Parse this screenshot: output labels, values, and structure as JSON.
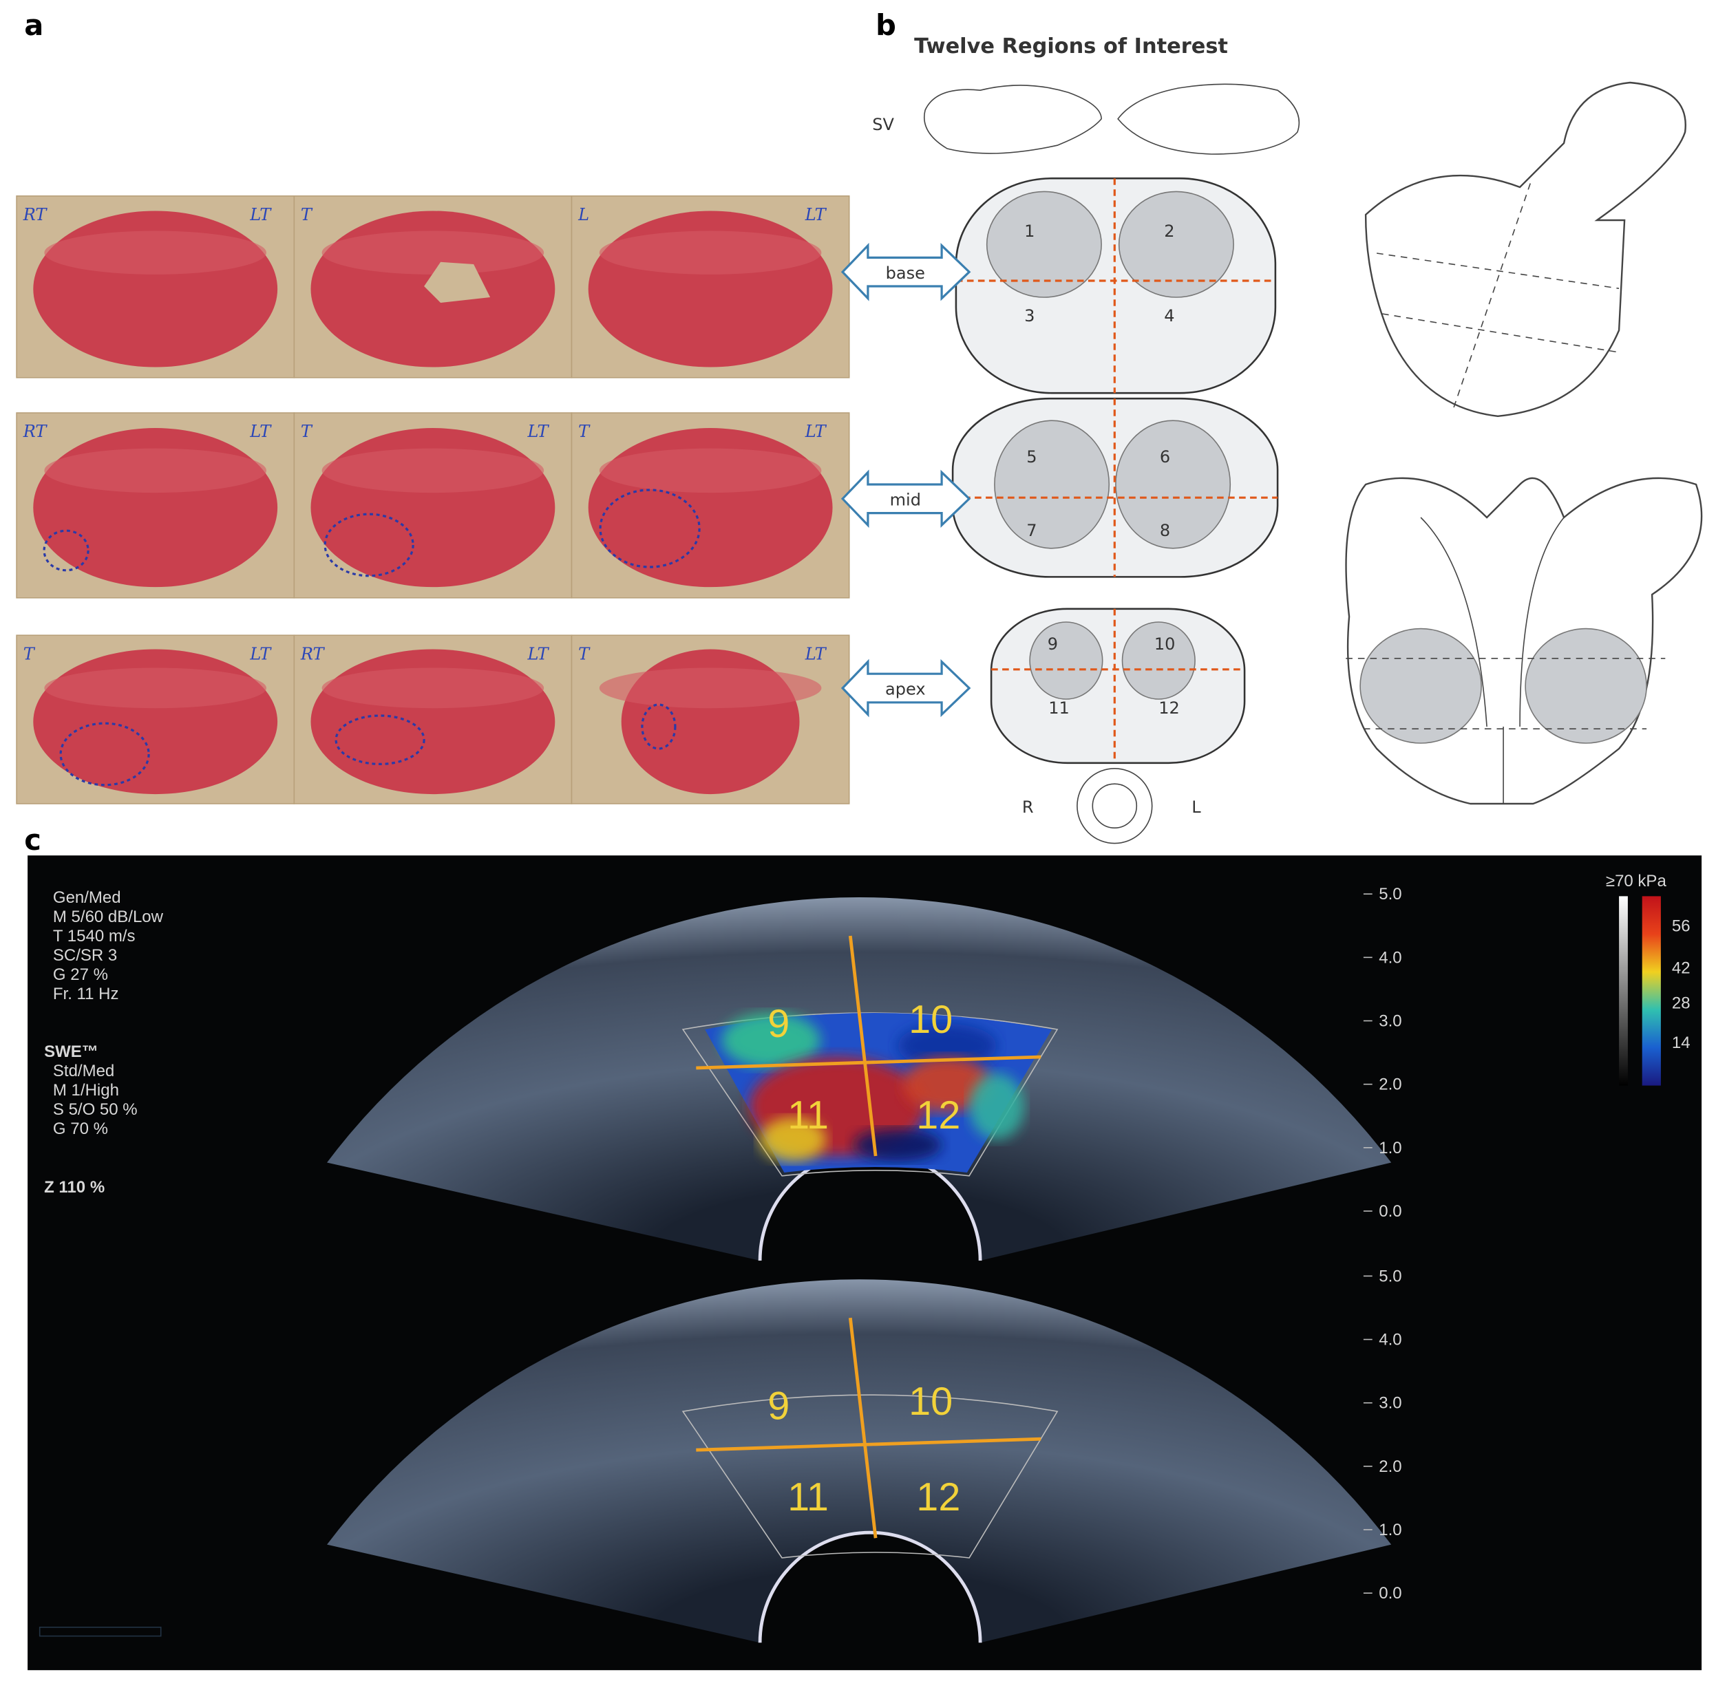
{
  "panel_a": {
    "label": "a",
    "rows": [
      {
        "slides": [
          {
            "marks": [
              "RT",
              "LT"
            ]
          },
          {
            "marks": [
              "T"
            ]
          },
          {
            "marks": [
              "L",
              "LT"
            ]
          }
        ]
      },
      {
        "slides": [
          {
            "marks": [
              "RT",
              "LT"
            ]
          },
          {
            "marks": [
              "T",
              "LT"
            ]
          },
          {
            "marks": [
              "T",
              "LT"
            ]
          }
        ]
      },
      {
        "slides": [
          {
            "marks": [
              "T",
              "LT"
            ]
          },
          {
            "marks": [
              "RT",
              "LT"
            ]
          },
          {
            "marks": [
              "T",
              "LT"
            ]
          }
        ]
      }
    ]
  },
  "panel_b": {
    "label": "b",
    "title": "Twelve Regions of Interest",
    "sv_label": "SV",
    "levels": [
      {
        "name": "base",
        "regions": [
          "1",
          "2",
          "3",
          "4"
        ]
      },
      {
        "name": "mid",
        "regions": [
          "5",
          "6",
          "7",
          "8"
        ]
      },
      {
        "name": "apex",
        "regions": [
          "9",
          "10",
          "11",
          "12"
        ]
      }
    ],
    "orientation": {
      "right": "R",
      "left": "L"
    }
  },
  "panel_c": {
    "label": "c",
    "settings": [
      "Gen/Med",
      "M 5/60 dB/Low",
      "T 1540 m/s",
      "SC/SR 3",
      "G 27 %",
      "Fr. 11 Hz"
    ],
    "swe": [
      "SWE™",
      "Std/Med",
      "M 1/High",
      "S 5/O 50 %",
      "G 70 %"
    ],
    "zoom": "Z 110 %",
    "depth_scale": [
      "5.0",
      "4.0",
      "3.0",
      "2.0",
      "1.0",
      "0.0"
    ],
    "colorbar": {
      "title": "≥70 kPa",
      "labels": [
        "56",
        "42",
        "28",
        "14"
      ]
    },
    "images": [
      {
        "regions": [
          "9",
          "10",
          "11",
          "12"
        ]
      },
      {
        "regions": [
          "9",
          "10",
          "11",
          "12"
        ]
      }
    ]
  }
}
